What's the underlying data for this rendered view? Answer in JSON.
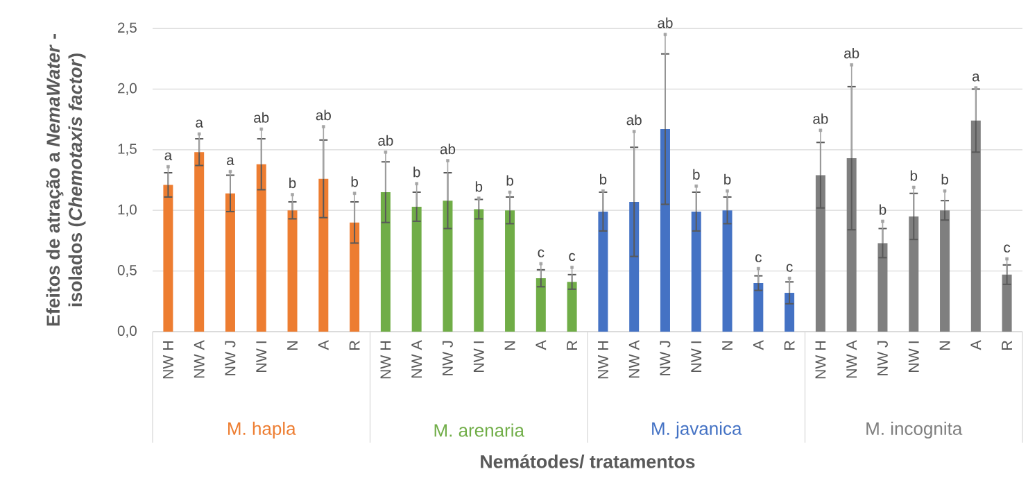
{
  "chart_data": {
    "type": "bar",
    "xlabel": "Nemátodes/ tratamentos",
    "ylabel": "Efeitos de atração a *NemaWater* - isolados (*Chemotaxis factor*)",
    "categories": [
      "NW H",
      "NW A",
      "NW J",
      "NW I",
      "N",
      "A",
      "R",
      "NW H",
      "NW A",
      "NW J",
      "NW I",
      "N",
      "A",
      "R",
      "NW H",
      "NW A",
      "NW J",
      "NW I",
      "N",
      "A",
      "R",
      "NW H",
      "NW A",
      "NW J",
      "NW I",
      "N",
      "A",
      "R"
    ],
    "series": [
      {
        "name": "M. hapla",
        "color": "#ed7d31",
        "values": [
          1.21,
          1.48,
          1.14,
          1.38,
          1.0,
          1.26,
          0.9,
          null,
          null,
          null,
          null,
          null,
          null,
          null,
          null,
          null,
          null,
          null,
          null,
          null,
          null,
          null,
          null,
          null,
          null,
          null,
          null,
          null
        ],
        "errors": [
          0.1,
          0.11,
          0.15,
          0.21,
          0.07,
          0.32,
          0.17,
          null,
          null,
          null,
          null,
          null,
          null,
          null,
          null,
          null,
          null,
          null,
          null,
          null,
          null,
          null,
          null,
          null,
          null,
          null,
          null,
          null
        ]
      },
      {
        "name": "M. arenaria",
        "color": "#70ad47",
        "values": [
          null,
          null,
          null,
          null,
          null,
          null,
          null,
          1.15,
          1.03,
          1.08,
          1.01,
          1.0,
          0.44,
          0.41,
          null,
          null,
          null,
          null,
          null,
          null,
          null,
          null,
          null,
          null,
          null,
          null,
          null,
          null
        ],
        "errors": [
          null,
          null,
          null,
          null,
          null,
          null,
          null,
          0.25,
          0.12,
          0.23,
          0.08,
          0.11,
          0.07,
          0.06,
          null,
          null,
          null,
          null,
          null,
          null,
          null,
          null,
          null,
          null,
          null,
          null,
          null,
          null
        ]
      },
      {
        "name": "M. javanica",
        "color": "#4472c4",
        "values": [
          null,
          null,
          null,
          null,
          null,
          null,
          null,
          null,
          null,
          null,
          null,
          null,
          null,
          null,
          0.99,
          1.07,
          1.67,
          0.99,
          1.0,
          0.4,
          0.32,
          null,
          null,
          null,
          null,
          null,
          null,
          null
        ],
        "errors": [
          null,
          null,
          null,
          null,
          null,
          null,
          null,
          null,
          null,
          null,
          null,
          null,
          null,
          null,
          0.16,
          0.45,
          0.62,
          0.16,
          0.11,
          0.06,
          0.09,
          null,
          null,
          null,
          null,
          null,
          null,
          null
        ]
      },
      {
        "name": "M. incognita",
        "color": "#7f7f7f",
        "values": [
          null,
          null,
          null,
          null,
          null,
          null,
          null,
          null,
          null,
          null,
          null,
          null,
          null,
          null,
          null,
          null,
          null,
          null,
          null,
          null,
          null,
          1.29,
          1.43,
          0.73,
          0.95,
          1.0,
          1.74,
          0.47
        ],
        "errors": [
          null,
          null,
          null,
          null,
          null,
          null,
          null,
          null,
          null,
          null,
          null,
          null,
          null,
          null,
          null,
          null,
          null,
          null,
          null,
          null,
          null,
          0.27,
          0.59,
          0.12,
          0.19,
          0.08,
          0.26,
          0.08
        ]
      },
      {
        "type": "scatter",
        "marker": "square",
        "color": "#a5a5a5",
        "values": [
          1.36,
          1.63,
          1.32,
          1.67,
          1.13,
          1.69,
          1.14,
          1.48,
          1.22,
          1.41,
          1.1,
          1.15,
          0.56,
          0.53,
          1.16,
          1.65,
          2.45,
          1.2,
          1.16,
          0.52,
          0.44,
          1.66,
          2.2,
          0.91,
          1.19,
          1.16,
          2.01,
          0.6
        ],
        "errors": [
          [
            1.21,
            1.36
          ],
          [
            1.48,
            1.63
          ],
          [
            1.14,
            1.32
          ],
          [
            1.38,
            1.67
          ],
          [
            1.0,
            1.13
          ],
          [
            1.26,
            1.69
          ],
          [
            0.9,
            1.14
          ],
          [
            1.15,
            1.48
          ],
          [
            1.03,
            1.22
          ],
          [
            1.08,
            1.41
          ],
          [
            1.01,
            1.1
          ],
          [
            1.0,
            1.15
          ],
          [
            0.44,
            0.56
          ],
          [
            0.41,
            0.53
          ],
          [
            0.99,
            1.16
          ],
          [
            1.07,
            1.65
          ],
          [
            1.67,
            2.45
          ],
          [
            0.99,
            1.2
          ],
          [
            1.0,
            1.16
          ],
          [
            0.4,
            0.52
          ],
          [
            0.32,
            0.44
          ],
          [
            1.29,
            1.66
          ],
          [
            1.43,
            2.2
          ],
          [
            0.73,
            0.91
          ],
          [
            0.95,
            1.19
          ],
          [
            1.0,
            1.16
          ],
          [
            1.74,
            2.01
          ],
          [
            0.47,
            0.6
          ]
        ],
        "value_labels": [
          "a",
          "a",
          "a",
          "ab",
          "b",
          "ab",
          "b",
          "ab",
          "b",
          "ab",
          "b",
          "b",
          "c",
          "c",
          "b",
          "ab",
          "ab",
          "b",
          "b",
          "c",
          "c",
          "ab",
          "ab",
          "b",
          "b",
          "b",
          "a",
          "c"
        ]
      }
    ],
    "ylim": [
      0,
      2.5
    ],
    "yticks": [
      {
        "value": 0,
        "label": "0,0"
      },
      {
        "value": 0.5,
        "label": "0,5"
      },
      {
        "value": 1,
        "label": "1,0"
      },
      {
        "value": 1.5,
        "label": "1,5"
      },
      {
        "value": 2,
        "label": "2,0"
      },
      {
        "value": 2.5,
        "label": "2,5"
      }
    ],
    "grid": "y"
  }
}
